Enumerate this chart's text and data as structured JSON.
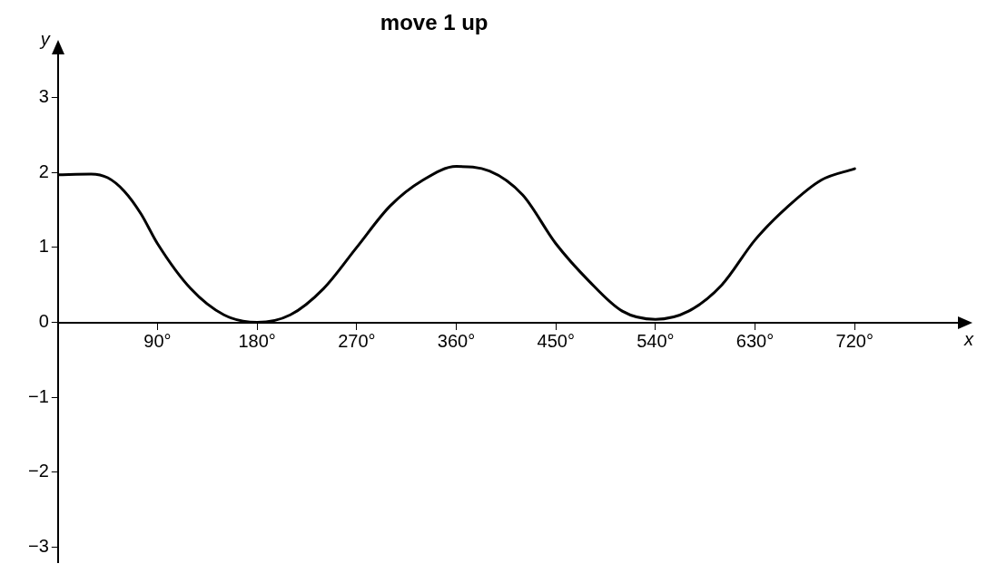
{
  "chart_data": {
    "type": "line",
    "xlabel": "x",
    "ylabel": "y",
    "annotations": [
      "move 1 up"
    ],
    "x": [
      0,
      30,
      45,
      60,
      75,
      90,
      120,
      150,
      180,
      210,
      240,
      270,
      300,
      330,
      360,
      390,
      420,
      450,
      480,
      510,
      540,
      570,
      600,
      630,
      660,
      690,
      720
    ],
    "series": [
      {
        "color": "#000000",
        "values": [
          1.97,
          1.98,
          1.93,
          1.75,
          1.45,
          1.05,
          0.45,
          0.1,
          0,
          0.1,
          0.45,
          1.0,
          1.55,
          1.9,
          2.08,
          2.02,
          1.7,
          1.05,
          0.55,
          0.15,
          0.04,
          0.15,
          0.5,
          1.1,
          1.55,
          1.9,
          2.05
        ]
      }
    ],
    "xlim": [
      0,
      815
    ],
    "ylim": [
      -3.2,
      3.6
    ],
    "xticks": [
      {
        "value": 90,
        "label": "90°"
      },
      {
        "value": 180,
        "label": "180°"
      },
      {
        "value": 270,
        "label": "270°"
      },
      {
        "value": 360,
        "label": "360°"
      },
      {
        "value": 450,
        "label": "450°"
      },
      {
        "value": 540,
        "label": "540°"
      },
      {
        "value": 630,
        "label": "630°"
      },
      {
        "value": 720,
        "label": "720°"
      }
    ],
    "yticks": [
      {
        "value": -3,
        "label": "−3"
      },
      {
        "value": -2,
        "label": "−2"
      },
      {
        "value": -1,
        "label": "−1"
      },
      0,
      1,
      2,
      3
    ],
    "grid": false,
    "legend": false,
    "marker": "none",
    "line_style": "solid"
  }
}
